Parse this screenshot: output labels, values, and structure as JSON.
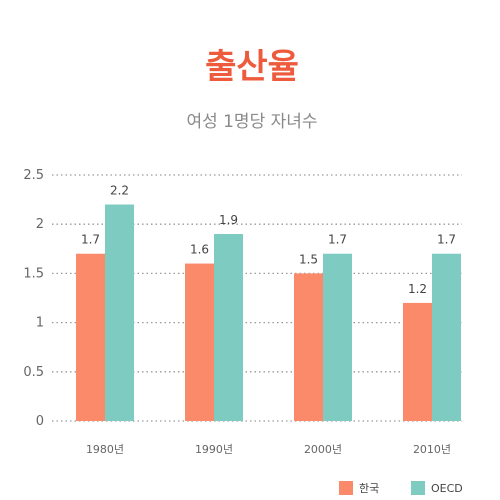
{
  "chart_data": {
    "type": "bar",
    "title": "출산율",
    "subtitle": "여성 1명당 자녀수",
    "categories": [
      "1980년",
      "1990년",
      "2000년",
      "2010년"
    ],
    "series": [
      {
        "name": "한국",
        "values": [
          1.7,
          1.6,
          1.5,
          1.2
        ],
        "value_labels": [
          "1.7",
          "1.6",
          "1.5",
          "1.2"
        ],
        "color": "#fa8a6a"
      },
      {
        "name": "OECD",
        "values": [
          2.2,
          1.9,
          1.7,
          1.7
        ],
        "value_labels": [
          "2.2",
          "1.9",
          "1.7",
          "1.7"
        ],
        "color": "#7ecbc1"
      }
    ],
    "yticks": [
      0,
      0.5,
      1,
      1.5,
      2,
      2.5
    ],
    "ytick_labels": [
      "0",
      "0.5",
      "1",
      "1.5",
      "2",
      "2.5"
    ],
    "ylim": [
      0,
      2.5
    ],
    "grid": true,
    "legend_position": "bottom-right"
  }
}
